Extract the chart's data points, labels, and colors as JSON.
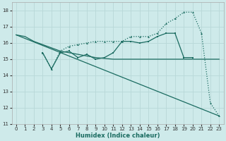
{
  "xlabel": "Humidex (Indice chaleur)",
  "xlim": [
    -0.5,
    23.5
  ],
  "ylim": [
    11,
    18.5
  ],
  "yticks": [
    11,
    12,
    13,
    14,
    15,
    16,
    17,
    18
  ],
  "xticks": [
    0,
    1,
    2,
    3,
    4,
    5,
    6,
    7,
    8,
    9,
    10,
    11,
    12,
    13,
    14,
    15,
    16,
    17,
    18,
    19,
    20,
    21,
    22,
    23
  ],
  "background_color": "#ceeaea",
  "grid_color": "#b8d8d8",
  "line_color": "#1a6b60",
  "line1": {
    "x": [
      0,
      1,
      2,
      3,
      4,
      5,
      6,
      7,
      8,
      9,
      10,
      11,
      12,
      13,
      14,
      15,
      16,
      17,
      18,
      19,
      20,
      21,
      22,
      23
    ],
    "y": [
      16.5,
      16.4,
      16.1,
      15.9,
      15.7,
      15.5,
      15.4,
      15.3,
      15.2,
      15.1,
      15.05,
      15.0,
      15.0,
      15.0,
      15.0,
      15.0,
      15.0,
      15.0,
      15.0,
      15.0,
      15.0,
      15.0,
      15.0,
      15.0
    ]
  },
  "line2": {
    "x": [
      3,
      4,
      5,
      6,
      7,
      8,
      9,
      10,
      11,
      12,
      13,
      14,
      15,
      16,
      17,
      18,
      19,
      20
    ],
    "y": [
      15.4,
      14.4,
      15.4,
      15.5,
      15.1,
      15.3,
      15.0,
      15.1,
      15.4,
      16.1,
      16.1,
      16.0,
      16.1,
      16.4,
      16.6,
      16.6,
      15.1,
      15.1
    ]
  },
  "line3": {
    "x": [
      3,
      4,
      5,
      6,
      7,
      8,
      9,
      10,
      11,
      12,
      13,
      14,
      15,
      16,
      17,
      18,
      19,
      20,
      21,
      22,
      23
    ],
    "y": [
      15.4,
      14.4,
      15.5,
      15.8,
      15.9,
      16.0,
      16.1,
      16.1,
      16.1,
      16.1,
      16.4,
      16.4,
      16.4,
      16.6,
      17.2,
      17.5,
      17.9,
      17.9,
      16.6,
      12.3,
      11.5
    ]
  },
  "line4": {
    "x": [
      0,
      23
    ],
    "y": [
      16.5,
      11.5
    ]
  }
}
